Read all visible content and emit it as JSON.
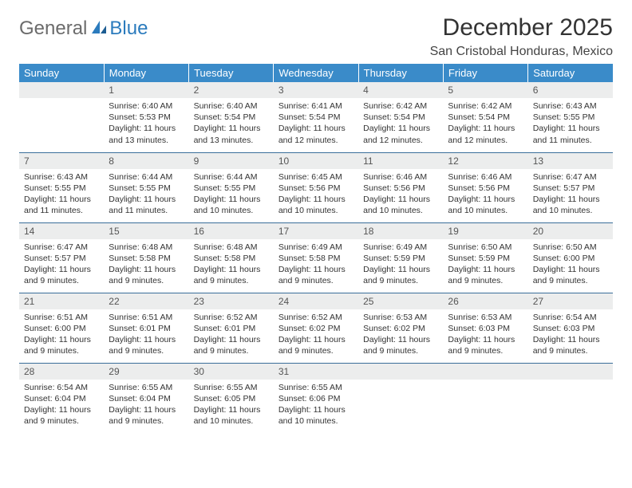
{
  "logo": {
    "part1": "General",
    "part2": "Blue"
  },
  "title": "December 2025",
  "location": "San Cristobal Honduras, Mexico",
  "colors": {
    "header_bg": "#3a8bc9",
    "header_text": "#ffffff",
    "row_border": "#3a6e9a",
    "daynum_bg": "#eceded",
    "logo_gray": "#6b6b6b",
    "logo_blue": "#2b7bbd"
  },
  "weekdays": [
    "Sunday",
    "Monday",
    "Tuesday",
    "Wednesday",
    "Thursday",
    "Friday",
    "Saturday"
  ],
  "weeks": [
    [
      {
        "n": "",
        "sr": "",
        "ss": "",
        "dl": ""
      },
      {
        "n": "1",
        "sr": "Sunrise: 6:40 AM",
        "ss": "Sunset: 5:53 PM",
        "dl": "Daylight: 11 hours and 13 minutes."
      },
      {
        "n": "2",
        "sr": "Sunrise: 6:40 AM",
        "ss": "Sunset: 5:54 PM",
        "dl": "Daylight: 11 hours and 13 minutes."
      },
      {
        "n": "3",
        "sr": "Sunrise: 6:41 AM",
        "ss": "Sunset: 5:54 PM",
        "dl": "Daylight: 11 hours and 12 minutes."
      },
      {
        "n": "4",
        "sr": "Sunrise: 6:42 AM",
        "ss": "Sunset: 5:54 PM",
        "dl": "Daylight: 11 hours and 12 minutes."
      },
      {
        "n": "5",
        "sr": "Sunrise: 6:42 AM",
        "ss": "Sunset: 5:54 PM",
        "dl": "Daylight: 11 hours and 12 minutes."
      },
      {
        "n": "6",
        "sr": "Sunrise: 6:43 AM",
        "ss": "Sunset: 5:55 PM",
        "dl": "Daylight: 11 hours and 11 minutes."
      }
    ],
    [
      {
        "n": "7",
        "sr": "Sunrise: 6:43 AM",
        "ss": "Sunset: 5:55 PM",
        "dl": "Daylight: 11 hours and 11 minutes."
      },
      {
        "n": "8",
        "sr": "Sunrise: 6:44 AM",
        "ss": "Sunset: 5:55 PM",
        "dl": "Daylight: 11 hours and 11 minutes."
      },
      {
        "n": "9",
        "sr": "Sunrise: 6:44 AM",
        "ss": "Sunset: 5:55 PM",
        "dl": "Daylight: 11 hours and 10 minutes."
      },
      {
        "n": "10",
        "sr": "Sunrise: 6:45 AM",
        "ss": "Sunset: 5:56 PM",
        "dl": "Daylight: 11 hours and 10 minutes."
      },
      {
        "n": "11",
        "sr": "Sunrise: 6:46 AM",
        "ss": "Sunset: 5:56 PM",
        "dl": "Daylight: 11 hours and 10 minutes."
      },
      {
        "n": "12",
        "sr": "Sunrise: 6:46 AM",
        "ss": "Sunset: 5:56 PM",
        "dl": "Daylight: 11 hours and 10 minutes."
      },
      {
        "n": "13",
        "sr": "Sunrise: 6:47 AM",
        "ss": "Sunset: 5:57 PM",
        "dl": "Daylight: 11 hours and 10 minutes."
      }
    ],
    [
      {
        "n": "14",
        "sr": "Sunrise: 6:47 AM",
        "ss": "Sunset: 5:57 PM",
        "dl": "Daylight: 11 hours and 9 minutes."
      },
      {
        "n": "15",
        "sr": "Sunrise: 6:48 AM",
        "ss": "Sunset: 5:58 PM",
        "dl": "Daylight: 11 hours and 9 minutes."
      },
      {
        "n": "16",
        "sr": "Sunrise: 6:48 AM",
        "ss": "Sunset: 5:58 PM",
        "dl": "Daylight: 11 hours and 9 minutes."
      },
      {
        "n": "17",
        "sr": "Sunrise: 6:49 AM",
        "ss": "Sunset: 5:58 PM",
        "dl": "Daylight: 11 hours and 9 minutes."
      },
      {
        "n": "18",
        "sr": "Sunrise: 6:49 AM",
        "ss": "Sunset: 5:59 PM",
        "dl": "Daylight: 11 hours and 9 minutes."
      },
      {
        "n": "19",
        "sr": "Sunrise: 6:50 AM",
        "ss": "Sunset: 5:59 PM",
        "dl": "Daylight: 11 hours and 9 minutes."
      },
      {
        "n": "20",
        "sr": "Sunrise: 6:50 AM",
        "ss": "Sunset: 6:00 PM",
        "dl": "Daylight: 11 hours and 9 minutes."
      }
    ],
    [
      {
        "n": "21",
        "sr": "Sunrise: 6:51 AM",
        "ss": "Sunset: 6:00 PM",
        "dl": "Daylight: 11 hours and 9 minutes."
      },
      {
        "n": "22",
        "sr": "Sunrise: 6:51 AM",
        "ss": "Sunset: 6:01 PM",
        "dl": "Daylight: 11 hours and 9 minutes."
      },
      {
        "n": "23",
        "sr": "Sunrise: 6:52 AM",
        "ss": "Sunset: 6:01 PM",
        "dl": "Daylight: 11 hours and 9 minutes."
      },
      {
        "n": "24",
        "sr": "Sunrise: 6:52 AM",
        "ss": "Sunset: 6:02 PM",
        "dl": "Daylight: 11 hours and 9 minutes."
      },
      {
        "n": "25",
        "sr": "Sunrise: 6:53 AM",
        "ss": "Sunset: 6:02 PM",
        "dl": "Daylight: 11 hours and 9 minutes."
      },
      {
        "n": "26",
        "sr": "Sunrise: 6:53 AM",
        "ss": "Sunset: 6:03 PM",
        "dl": "Daylight: 11 hours and 9 minutes."
      },
      {
        "n": "27",
        "sr": "Sunrise: 6:54 AM",
        "ss": "Sunset: 6:03 PM",
        "dl": "Daylight: 11 hours and 9 minutes."
      }
    ],
    [
      {
        "n": "28",
        "sr": "Sunrise: 6:54 AM",
        "ss": "Sunset: 6:04 PM",
        "dl": "Daylight: 11 hours and 9 minutes."
      },
      {
        "n": "29",
        "sr": "Sunrise: 6:55 AM",
        "ss": "Sunset: 6:04 PM",
        "dl": "Daylight: 11 hours and 9 minutes."
      },
      {
        "n": "30",
        "sr": "Sunrise: 6:55 AM",
        "ss": "Sunset: 6:05 PM",
        "dl": "Daylight: 11 hours and 10 minutes."
      },
      {
        "n": "31",
        "sr": "Sunrise: 6:55 AM",
        "ss": "Sunset: 6:06 PM",
        "dl": "Daylight: 11 hours and 10 minutes."
      },
      {
        "n": "",
        "sr": "",
        "ss": "",
        "dl": ""
      },
      {
        "n": "",
        "sr": "",
        "ss": "",
        "dl": ""
      },
      {
        "n": "",
        "sr": "",
        "ss": "",
        "dl": ""
      }
    ]
  ]
}
